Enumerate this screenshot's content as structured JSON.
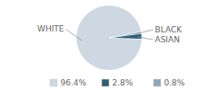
{
  "chart_data": {
    "type": "pie",
    "categories": [
      "WHITE",
      "ASIAN",
      "BLACK"
    ],
    "values": [
      96.4,
      2.8,
      0.8
    ],
    "colors": [
      "#cdd8e3",
      "#2e5f7a",
      "#8aaabb"
    ],
    "value_labels": [
      "96.4%",
      "2.8%",
      "0.8%"
    ],
    "legend": "bottom"
  }
}
